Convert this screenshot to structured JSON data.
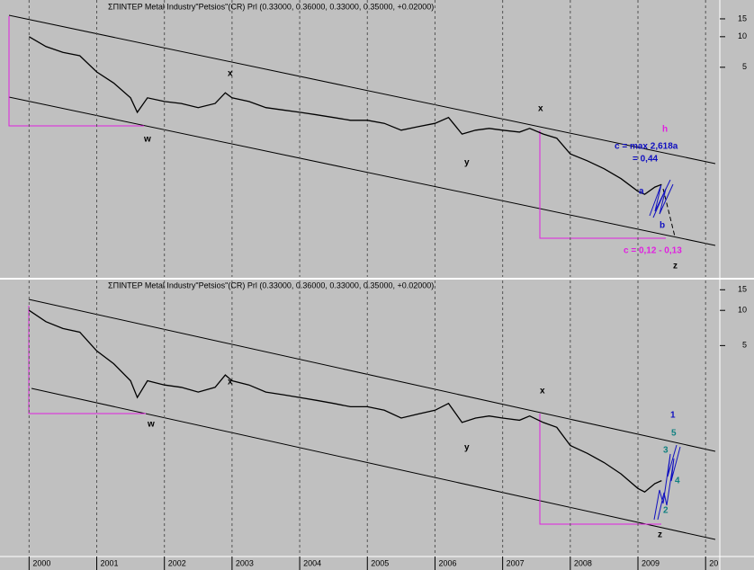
{
  "chart_data": [
    {
      "type": "line",
      "title": "ΣΠΙΝΤΕΡ Metal Industry\"Petsios\"(CR) Prl (0.33000, 0.36000, 0.33000, 0.35000, +0.02000)",
      "x": [
        2000.0,
        2000.25,
        2000.5,
        2000.75,
        2001.0,
        2001.25,
        2001.5,
        2001.6,
        2001.75,
        2002.0,
        2002.25,
        2002.5,
        2002.75,
        2002.9,
        2003.0,
        2003.25,
        2003.5,
        2003.75,
        2004.0,
        2004.25,
        2004.5,
        2004.75,
        2005.0,
        2005.25,
        2005.5,
        2005.75,
        2006.0,
        2006.2,
        2006.4,
        2006.6,
        2006.8,
        2007.0,
        2007.25,
        2007.4,
        2007.6,
        2007.8,
        2008.0,
        2008.25,
        2008.5,
        2008.75,
        2009.0,
        2009.1,
        2009.25,
        2009.35
      ],
      "values": [
        10,
        8,
        7,
        6.5,
        4.5,
        3.5,
        2.5,
        1.8,
        2.5,
        2.3,
        2.2,
        2.0,
        2.2,
        2.8,
        2.5,
        2.3,
        2.0,
        1.9,
        1.8,
        1.7,
        1.6,
        1.5,
        1.5,
        1.4,
        1.2,
        1.3,
        1.4,
        1.6,
        1.1,
        1.2,
        1.25,
        1.2,
        1.15,
        1.25,
        1.1,
        1.0,
        0.7,
        0.6,
        0.5,
        0.4,
        0.3,
        0.28,
        0.33,
        0.35
      ],
      "color": "#000000",
      "log_scale": true,
      "ylim": [
        0.043,
        23
      ],
      "yticks": [
        5,
        10,
        15
      ],
      "xlim": [
        1999.57,
        2010.21
      ],
      "annotations": [
        {
          "text": "x",
          "color": "#000000"
        },
        {
          "text": "w",
          "color": "#000000"
        },
        {
          "text": "y",
          "color": "#000000"
        },
        {
          "text": "x",
          "color": "#000000"
        },
        {
          "text": "h",
          "color": "#e020e0"
        },
        {
          "text": "c = max 2,618a",
          "color": "#1010c0"
        },
        {
          "text": "= 0,44",
          "color": "#1010c0"
        },
        {
          "text": "a",
          "color": "#1010c0"
        },
        {
          "text": "b",
          "color": "#1010c0"
        },
        {
          "text": "c = 0,12 - 0,13",
          "color": "#e020e0"
        },
        {
          "text": "z",
          "color": "#000000"
        }
      ]
    },
    {
      "type": "line",
      "title": "ΣΠΙΝΤΕΡ Metal Industry\"Petsios\"(CR) Prl (0.33000, 0.36000, 0.33000, 0.35000, +0.02000)",
      "x": [
        2000.0,
        2000.25,
        2000.5,
        2000.75,
        2001.0,
        2001.25,
        2001.5,
        2001.6,
        2001.75,
        2002.0,
        2002.25,
        2002.5,
        2002.75,
        2002.9,
        2003.0,
        2003.25,
        2003.5,
        2003.75,
        2004.0,
        2004.25,
        2004.5,
        2004.75,
        2005.0,
        2005.25,
        2005.5,
        2005.75,
        2006.0,
        2006.2,
        2006.4,
        2006.6,
        2006.8,
        2007.0,
        2007.25,
        2007.4,
        2007.6,
        2007.8,
        2008.0,
        2008.25,
        2008.5,
        2008.75,
        2009.0,
        2009.1,
        2009.25,
        2009.35
      ],
      "values": [
        10,
        8,
        7,
        6.5,
        4.5,
        3.5,
        2.5,
        1.8,
        2.5,
        2.3,
        2.2,
        2.0,
        2.2,
        2.8,
        2.5,
        2.3,
        2.0,
        1.9,
        1.8,
        1.7,
        1.6,
        1.5,
        1.5,
        1.4,
        1.2,
        1.3,
        1.4,
        1.6,
        1.1,
        1.2,
        1.25,
        1.2,
        1.15,
        1.25,
        1.1,
        1.0,
        0.7,
        0.6,
        0.5,
        0.4,
        0.3,
        0.28,
        0.33,
        0.35
      ],
      "color": "#000000",
      "log_scale": true,
      "ylim": [
        0.08,
        18
      ],
      "yticks": [
        5,
        10,
        15
      ],
      "xlim": [
        1999.57,
        2010.21
      ],
      "xticks": [
        2000,
        2001,
        2002,
        2003,
        2004,
        2005,
        2006,
        2007,
        2008,
        2009,
        {
          "value": 2010,
          "label": "20"
        }
      ],
      "annotations": [
        {
          "text": "x",
          "color": "#000000"
        },
        {
          "text": "w",
          "color": "#000000"
        },
        {
          "text": "y",
          "color": "#000000"
        },
        {
          "text": "x",
          "color": "#000000"
        },
        {
          "text": "1",
          "color": "#1010c0"
        },
        {
          "text": "5",
          "color": "#108080"
        },
        {
          "text": "3",
          "color": "#108080"
        },
        {
          "text": "4",
          "color": "#108080"
        },
        {
          "text": "2",
          "color": "#108080"
        },
        {
          "text": "z",
          "color": "#000000"
        }
      ]
    }
  ]
}
